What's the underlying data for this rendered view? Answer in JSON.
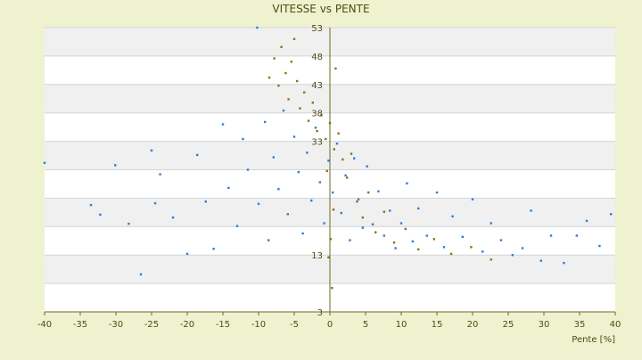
{
  "colors": {
    "page_background": "#eef2cf",
    "plot_background": "#ffffff",
    "stripe": "#f0f0f0",
    "grid_line": "#d4d4d4",
    "axis_line": "#6b6b1e",
    "text": "#4d4d14",
    "series_blue": "#2f7fd0",
    "series_olive": "#7c7a1c"
  },
  "chart_data": {
    "type": "scatter",
    "title": "VITESSE vs PENTE",
    "xlabel": "Pente [%]",
    "ylabel": "",
    "xlim": [
      -40,
      40
    ],
    "ylim": [
      3,
      53
    ],
    "x_ticks": [
      -40,
      -35,
      -30,
      -25,
      -20,
      -15,
      -10,
      -5,
      0,
      5,
      10,
      15,
      20,
      25,
      30,
      35,
      40
    ],
    "y_ticks": [
      3,
      8,
      13,
      18,
      23,
      28,
      33,
      38,
      43,
      48,
      53
    ],
    "y_tick_labels": [
      "3",
      "",
      "13",
      "",
      "",
      "",
      "33",
      "38",
      "43",
      "48",
      "53"
    ],
    "grid": true,
    "legend": "none",
    "series": [
      {
        "color": "#2f7fd0",
        "points": [
          [
            -40.0,
            29.2
          ],
          [
            -33.5,
            21.8
          ],
          [
            -32.2,
            20.1
          ],
          [
            -30.1,
            28.8
          ],
          [
            -28.2,
            18.5
          ],
          [
            -26.5,
            9.6
          ],
          [
            -25.0,
            31.4
          ],
          [
            -24.5,
            22.1
          ],
          [
            -23.8,
            27.2
          ],
          [
            -22.0,
            19.6
          ],
          [
            -20.0,
            13.2
          ],
          [
            -18.6,
            30.6
          ],
          [
            -17.4,
            22.4
          ],
          [
            -16.3,
            14.1
          ],
          [
            -15.0,
            36.0
          ],
          [
            -14.2,
            24.8
          ],
          [
            -13.0,
            18.1
          ],
          [
            -12.2,
            33.4
          ],
          [
            -11.5,
            28.0
          ],
          [
            -10.2,
            53.0
          ],
          [
            -10.0,
            22.0
          ],
          [
            -9.1,
            36.4
          ],
          [
            -8.6,
            15.6
          ],
          [
            -7.9,
            30.2
          ],
          [
            -7.2,
            24.6
          ],
          [
            -6.5,
            38.4
          ],
          [
            -5.9,
            20.2
          ],
          [
            -5.0,
            33.8
          ],
          [
            -4.4,
            27.6
          ],
          [
            -3.8,
            16.8
          ],
          [
            -3.2,
            31.0
          ],
          [
            -2.6,
            22.6
          ],
          [
            -2.0,
            35.4
          ],
          [
            -1.4,
            25.8
          ],
          [
            -0.8,
            18.6
          ],
          [
            -0.2,
            29.6
          ],
          [
            0.4,
            24.0
          ],
          [
            1.0,
            32.6
          ],
          [
            1.6,
            20.4
          ],
          [
            2.2,
            27.0
          ],
          [
            2.8,
            15.6
          ],
          [
            3.4,
            30.0
          ],
          [
            4.0,
            22.8
          ],
          [
            4.6,
            17.8
          ],
          [
            5.2,
            28.6
          ],
          [
            6.0,
            18.4
          ],
          [
            6.8,
            24.2
          ],
          [
            7.6,
            16.4
          ],
          [
            8.4,
            20.8
          ],
          [
            9.2,
            14.2
          ],
          [
            10.0,
            18.6
          ],
          [
            10.8,
            25.6
          ],
          [
            11.6,
            15.4
          ],
          [
            12.4,
            21.2
          ],
          [
            13.6,
            16.4
          ],
          [
            15.0,
            24.0
          ],
          [
            16.0,
            14.4
          ],
          [
            17.2,
            19.8
          ],
          [
            18.6,
            16.2
          ],
          [
            20.0,
            22.8
          ],
          [
            21.4,
            13.6
          ],
          [
            22.6,
            18.6
          ],
          [
            24.0,
            15.6
          ],
          [
            25.6,
            13.0
          ],
          [
            27.0,
            14.2
          ],
          [
            28.2,
            20.8
          ],
          [
            29.6,
            12.0
          ],
          [
            31.0,
            16.4
          ],
          [
            32.8,
            11.6
          ],
          [
            34.6,
            16.4
          ],
          [
            36.0,
            19.0
          ],
          [
            37.8,
            14.6
          ],
          [
            39.4,
            20.2
          ]
        ]
      },
      {
        "color": "#7c7a1c",
        "points": [
          [
            -8.5,
            44.2
          ],
          [
            -7.8,
            47.6
          ],
          [
            -7.2,
            42.8
          ],
          [
            -6.8,
            49.6
          ],
          [
            -6.2,
            45.0
          ],
          [
            -5.8,
            40.4
          ],
          [
            -5.4,
            47.0
          ],
          [
            -5.0,
            51.0
          ],
          [
            -4.6,
            43.6
          ],
          [
            -4.2,
            38.8
          ],
          [
            -3.6,
            41.6
          ],
          [
            -3.0,
            36.6
          ],
          [
            -2.4,
            39.8
          ],
          [
            -1.8,
            34.8
          ],
          [
            -1.2,
            37.6
          ],
          [
            -0.6,
            33.4
          ],
          [
            0.0,
            36.2
          ],
          [
            0.6,
            31.6
          ],
          [
            1.2,
            34.4
          ],
          [
            1.8,
            29.8
          ],
          [
            2.4,
            26.6
          ],
          [
            3.0,
            30.8
          ],
          [
            3.8,
            22.4
          ],
          [
            4.6,
            19.6
          ],
          [
            5.4,
            24.0
          ],
          [
            6.4,
            17.0
          ],
          [
            7.6,
            20.6
          ],
          [
            9.0,
            15.2
          ],
          [
            10.6,
            17.6
          ],
          [
            12.4,
            14.0
          ],
          [
            14.6,
            15.8
          ],
          [
            17.0,
            13.2
          ],
          [
            19.8,
            14.4
          ],
          [
            22.6,
            12.2
          ],
          [
            0.8,
            45.8
          ],
          [
            -0.4,
            27.8
          ],
          [
            0.3,
            7.2
          ],
          [
            0.5,
            21.0
          ],
          [
            -0.2,
            12.6
          ],
          [
            0.1,
            15.8
          ]
        ]
      }
    ]
  }
}
